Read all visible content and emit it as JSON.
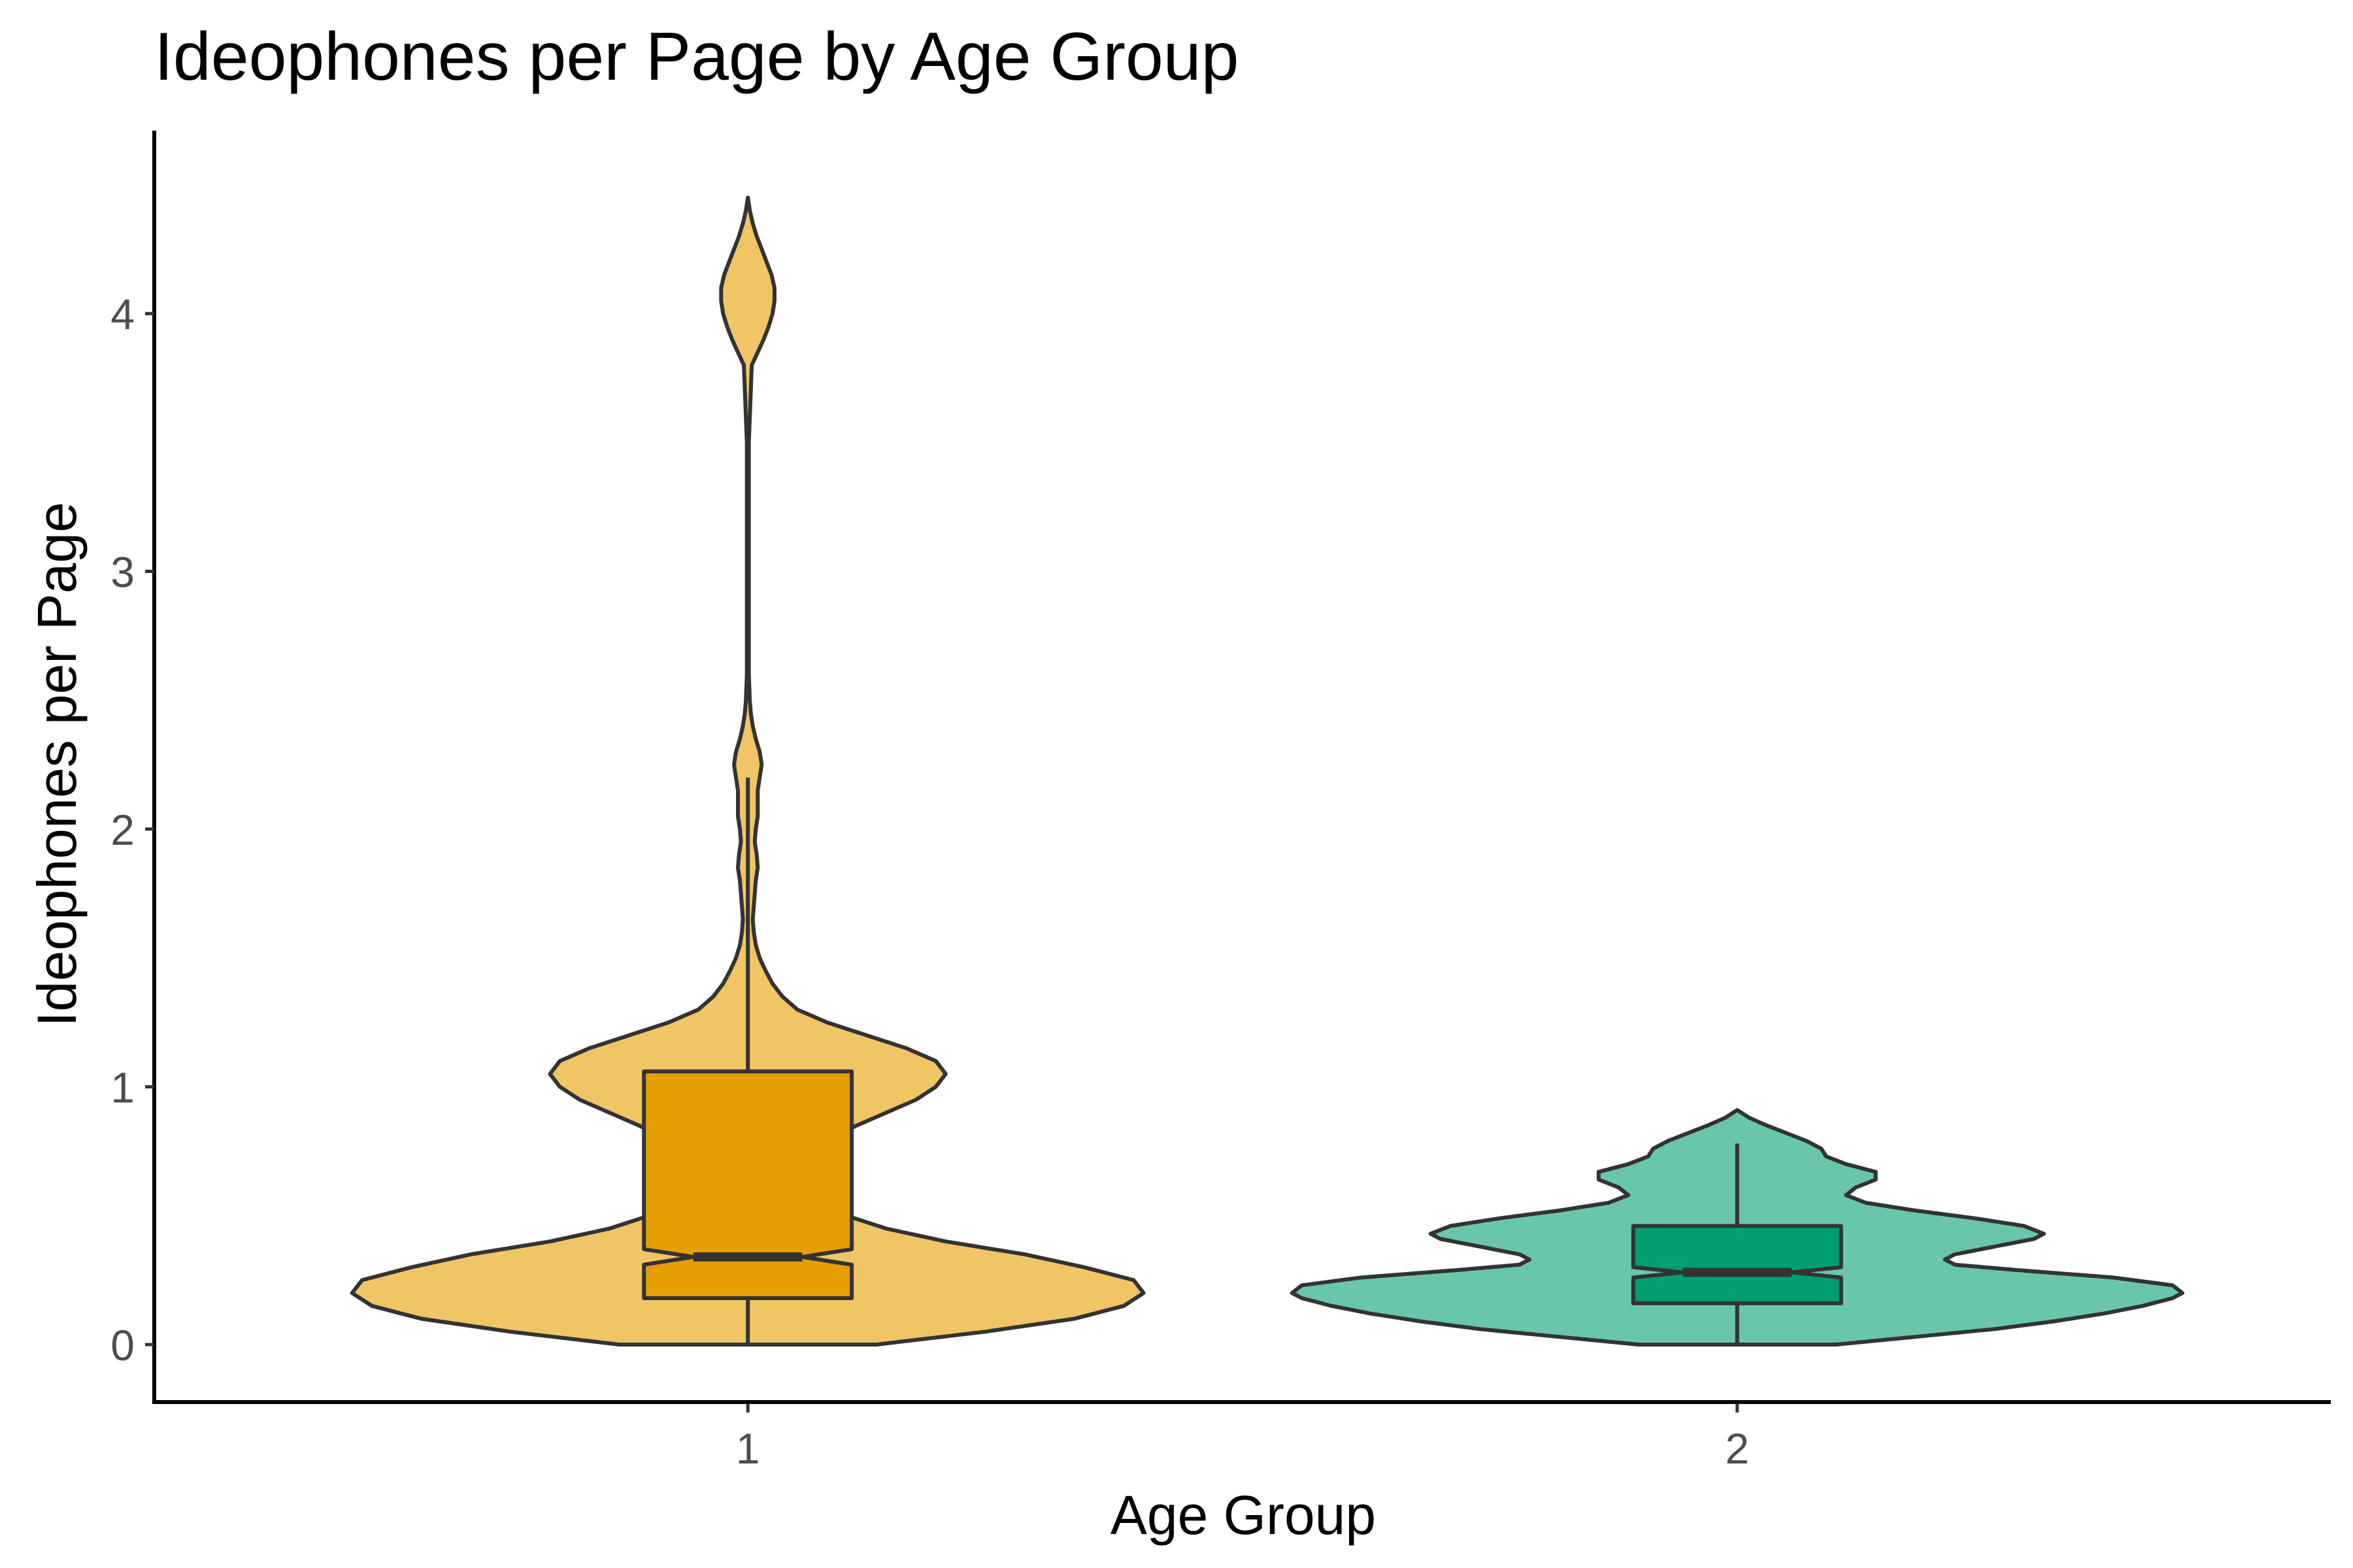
{
  "chart_data": {
    "type": "violin",
    "title": "Ideophones per Page by Age Group",
    "xlabel": "Age Group",
    "ylabel": "Ideophones per Page",
    "categories": [
      "1",
      "2"
    ],
    "y_ticks": [
      "0",
      "1",
      "2",
      "3",
      "4"
    ],
    "ylim": [
      -0.22,
      4.7
    ],
    "grid": false,
    "legend": "none",
    "colors": {
      "1": {
        "violin": "#F0C566",
        "box": "#E69F00"
      },
      "2": {
        "violin": "#69C6AC",
        "box": "#009E73"
      }
    },
    "groups": [
      {
        "category": "1",
        "boxplot": {
          "min": 0.0,
          "q1": 0.18,
          "median": 0.34,
          "q3": 1.06,
          "max": 2.2,
          "notch_low": 0.31,
          "notch_high": 0.37
        },
        "density_max_halfwidth": 0.4,
        "density": [
          [
            0.0,
            0.13
          ],
          [
            0.05,
            0.24
          ],
          [
            0.1,
            0.33
          ],
          [
            0.15,
            0.38
          ],
          [
            0.2,
            0.4
          ],
          [
            0.25,
            0.39
          ],
          [
            0.3,
            0.34
          ],
          [
            0.35,
            0.28
          ],
          [
            0.4,
            0.2
          ],
          [
            0.45,
            0.14
          ],
          [
            0.5,
            0.1
          ],
          [
            0.55,
            0.075
          ],
          [
            0.6,
            0.06
          ],
          [
            0.65,
            0.055
          ],
          [
            0.7,
            0.06
          ],
          [
            0.75,
            0.07
          ],
          [
            0.8,
            0.085
          ],
          [
            0.85,
            0.11
          ],
          [
            0.9,
            0.14
          ],
          [
            0.95,
            0.17
          ],
          [
            1.0,
            0.19
          ],
          [
            1.05,
            0.2
          ],
          [
            1.1,
            0.19
          ],
          [
            1.15,
            0.16
          ],
          [
            1.2,
            0.12
          ],
          [
            1.25,
            0.08
          ],
          [
            1.3,
            0.05
          ],
          [
            1.35,
            0.035
          ],
          [
            1.4,
            0.025
          ],
          [
            1.45,
            0.018
          ],
          [
            1.5,
            0.012
          ],
          [
            1.55,
            0.008
          ],
          [
            1.6,
            0.006
          ],
          [
            1.65,
            0.005
          ],
          [
            1.7,
            0.006
          ],
          [
            1.75,
            0.007
          ],
          [
            1.8,
            0.008
          ],
          [
            1.85,
            0.01
          ],
          [
            1.9,
            0.009
          ],
          [
            1.95,
            0.007
          ],
          [
            2.0,
            0.008
          ],
          [
            2.05,
            0.01
          ],
          [
            2.1,
            0.01
          ],
          [
            2.15,
            0.01
          ],
          [
            2.2,
            0.012
          ],
          [
            2.25,
            0.014
          ],
          [
            2.3,
            0.012
          ],
          [
            2.35,
            0.008
          ],
          [
            2.4,
            0.005
          ],
          [
            2.45,
            0.003
          ],
          [
            2.5,
            0.002
          ],
          [
            2.6,
            0.001
          ],
          [
            3.0,
            0.001
          ],
          [
            3.5,
            0.001
          ],
          [
            3.8,
            0.004
          ],
          [
            3.85,
            0.01
          ],
          [
            3.9,
            0.016
          ],
          [
            3.95,
            0.021
          ],
          [
            4.0,
            0.025
          ],
          [
            4.05,
            0.027
          ],
          [
            4.1,
            0.027
          ],
          [
            4.15,
            0.024
          ],
          [
            4.2,
            0.019
          ],
          [
            4.25,
            0.014
          ],
          [
            4.3,
            0.009
          ],
          [
            4.35,
            0.005
          ],
          [
            4.4,
            0.002
          ],
          [
            4.45,
            0.0
          ]
        ]
      },
      {
        "category": "2",
        "boxplot": {
          "min": 0.0,
          "q1": 0.16,
          "median": 0.28,
          "q3": 0.46,
          "max": 0.78,
          "notch_low": 0.26,
          "notch_high": 0.3
        },
        "density_max_halfwidth": 0.45,
        "density": [
          [
            0.0,
            0.1
          ],
          [
            0.03,
            0.18
          ],
          [
            0.06,
            0.26
          ],
          [
            0.09,
            0.32
          ],
          [
            0.12,
            0.37
          ],
          [
            0.15,
            0.41
          ],
          [
            0.18,
            0.44
          ],
          [
            0.2,
            0.45
          ],
          [
            0.23,
            0.44
          ],
          [
            0.26,
            0.38
          ],
          [
            0.29,
            0.28
          ],
          [
            0.31,
            0.22
          ],
          [
            0.33,
            0.21
          ],
          [
            0.35,
            0.22
          ],
          [
            0.38,
            0.26
          ],
          [
            0.41,
            0.3
          ],
          [
            0.43,
            0.31
          ],
          [
            0.46,
            0.29
          ],
          [
            0.49,
            0.24
          ],
          [
            0.52,
            0.18
          ],
          [
            0.55,
            0.13
          ],
          [
            0.58,
            0.11
          ],
          [
            0.61,
            0.12
          ],
          [
            0.64,
            0.14
          ],
          [
            0.67,
            0.14
          ],
          [
            0.7,
            0.11
          ],
          [
            0.73,
            0.09
          ],
          [
            0.76,
            0.085
          ],
          [
            0.79,
            0.07
          ],
          [
            0.82,
            0.05
          ],
          [
            0.85,
            0.03
          ],
          [
            0.88,
            0.012
          ],
          [
            0.91,
            0.0
          ]
        ]
      }
    ]
  }
}
